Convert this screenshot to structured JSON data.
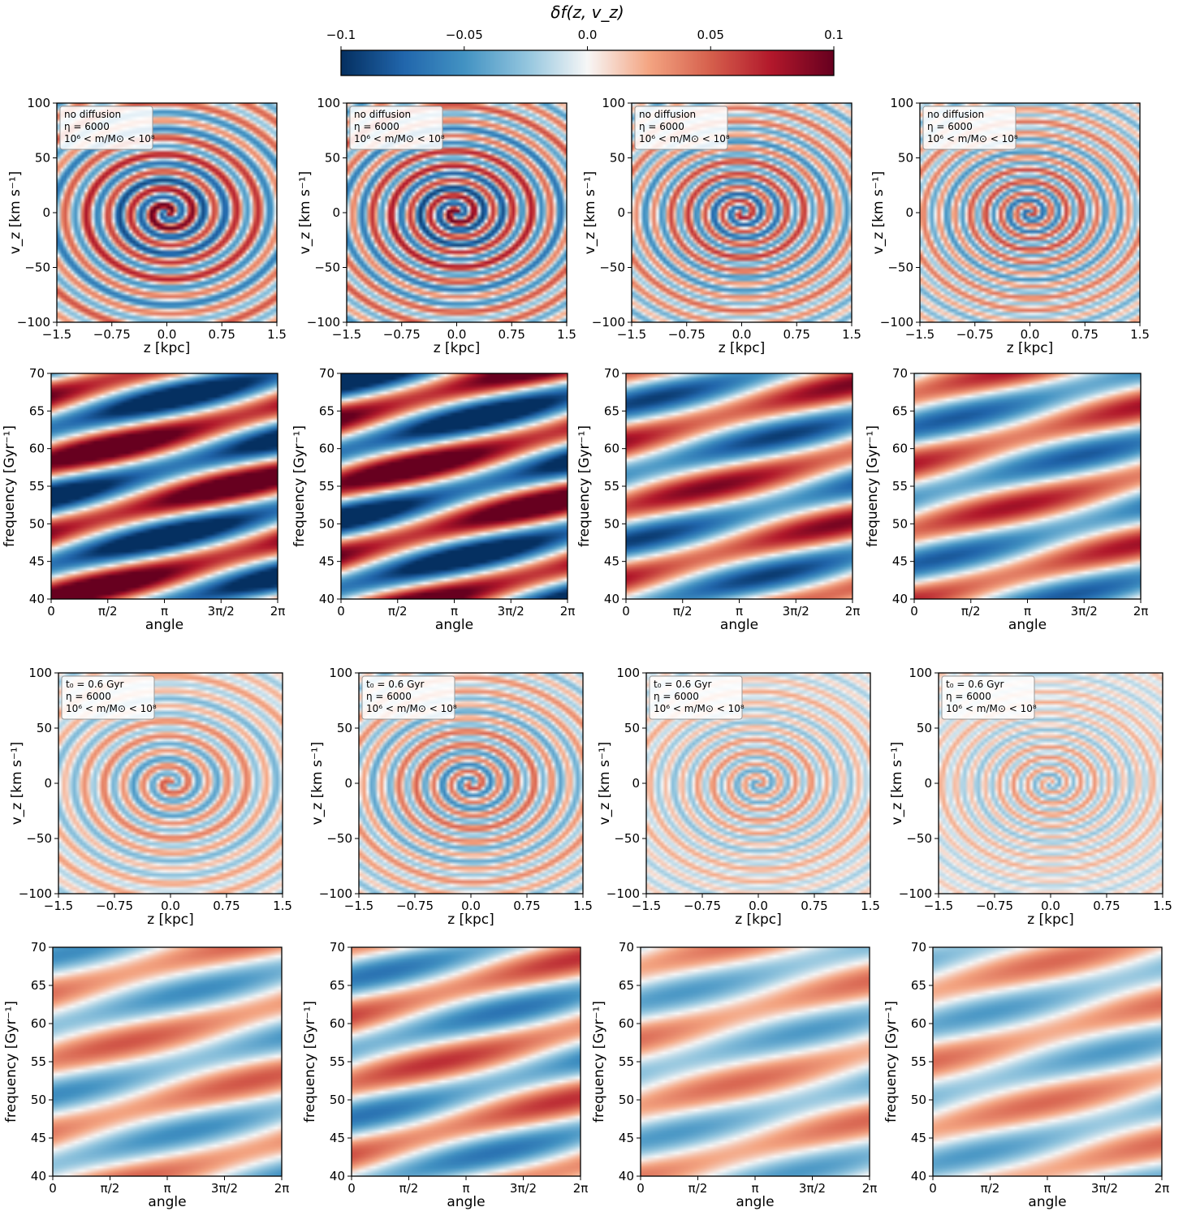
{
  "colorbar": {
    "title": "δf(z, v_z)",
    "vmin": -0.1,
    "vmax": 0.1,
    "ticks": [
      -0.1,
      -0.05,
      0.0,
      0.05,
      0.1
    ],
    "tick_labels": [
      "−0.1",
      "−0.05",
      "0.0",
      "0.05",
      "0.1"
    ],
    "colormap": "diverging blue–white–red",
    "colors": [
      "#053061",
      "#2166ac",
      "#4393c3",
      "#92c5de",
      "#f7f7f7",
      "#f4a582",
      "#d6604d",
      "#b2182b",
      "#67001f"
    ]
  },
  "chart_data": [
    {
      "type": "heatmap",
      "group": "no diffusion",
      "kind": "phase-space",
      "legend": [
        "no diffusion",
        "η = 6000",
        "10⁶ < m/M⊙ < 10⁸"
      ],
      "xlabel": "z [kpc]",
      "ylabel": "v_z [km s⁻¹]",
      "xlim": [
        -1.5,
        1.5
      ],
      "ylim": [
        -100,
        100
      ],
      "xticks": [
        "−1.5",
        "−0.75",
        "0.0",
        "0.75",
        "1.5"
      ],
      "yticks": [
        "100",
        "50",
        "0",
        "−50",
        "−100"
      ],
      "columns": 4,
      "panel_amplitudes": [
        0.1,
        0.1,
        0.08,
        0.07
      ]
    },
    {
      "type": "heatmap",
      "group": "no diffusion",
      "kind": "frequency-angle",
      "xlabel": "angle",
      "ylabel": "frequency [Gyr⁻¹]",
      "xlim": [
        0,
        6.283
      ],
      "ylim": [
        40,
        70
      ],
      "xticks": [
        "0",
        "π/2",
        "π",
        "3π/2",
        "2π"
      ],
      "yticks": [
        "70",
        "65",
        "60",
        "55",
        "50",
        "45",
        "40"
      ],
      "columns": 4,
      "panel_amplitudes": [
        0.1,
        0.1,
        0.07,
        0.06
      ]
    },
    {
      "type": "heatmap",
      "group": "t0 = 0.6 Gyr",
      "kind": "phase-space",
      "legend": [
        "t₀ = 0.6 Gyr",
        "η = 6000",
        "10⁶ < m/M⊙ < 10⁸"
      ],
      "xlabel": "z [kpc]",
      "ylabel": "v_z [km s⁻¹]",
      "xlim": [
        -1.5,
        1.5
      ],
      "ylim": [
        -100,
        100
      ],
      "xticks": [
        "−1.5",
        "−0.75",
        "0.0",
        "0.75",
        "1.5"
      ],
      "yticks": [
        "100",
        "50",
        "0",
        "−50",
        "−100"
      ],
      "columns": 4,
      "panel_amplitudes": [
        0.05,
        0.06,
        0.04,
        0.035
      ]
    },
    {
      "type": "heatmap",
      "group": "t0 = 0.6 Gyr",
      "kind": "frequency-angle",
      "xlabel": "angle",
      "ylabel": "frequency [Gyr⁻¹]",
      "xlim": [
        0,
        6.283
      ],
      "ylim": [
        40,
        70
      ],
      "xticks": [
        "0",
        "π/2",
        "π",
        "3π/2",
        "2π"
      ],
      "yticks": [
        "70",
        "65",
        "60",
        "55",
        "50",
        "45",
        "40"
      ],
      "columns": 4,
      "panel_amplitudes": [
        0.04,
        0.05,
        0.035,
        0.035
      ]
    }
  ]
}
